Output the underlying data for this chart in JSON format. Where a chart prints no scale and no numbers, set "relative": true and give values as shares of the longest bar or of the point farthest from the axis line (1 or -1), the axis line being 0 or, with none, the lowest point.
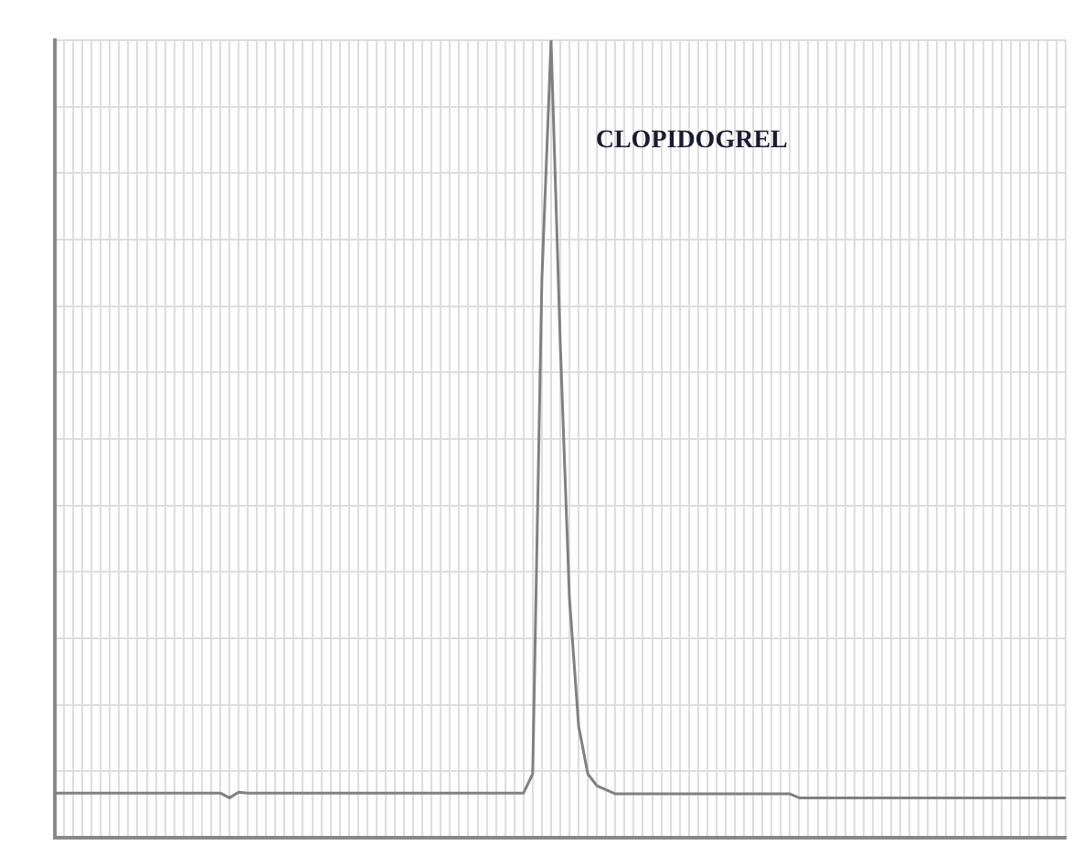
{
  "chart_data": {
    "type": "line",
    "relative": true,
    "categories": [
      null,
      null,
      null,
      null,
      null,
      null,
      null,
      null,
      null,
      null,
      null,
      null,
      null,
      null,
      null,
      null,
      null,
      null,
      null,
      null,
      null,
      null,
      null,
      null,
      null,
      null,
      null,
      null,
      null,
      null,
      null,
      null,
      null,
      null,
      null,
      null,
      null,
      null,
      null,
      null,
      null,
      null,
      null,
      null,
      null,
      null,
      null,
      null,
      null,
      null,
      null,
      null,
      null,
      null,
      null,
      null,
      null,
      null,
      null,
      null,
      null,
      null,
      null,
      null,
      null,
      null,
      null,
      null,
      null,
      null,
      null,
      null,
      null,
      null,
      null,
      null,
      null,
      null,
      null,
      null,
      null,
      null,
      null,
      null,
      null,
      null,
      null,
      null,
      null,
      null,
      null,
      null,
      null,
      null,
      null,
      null,
      null,
      null,
      null,
      null,
      null,
      null,
      null,
      null,
      null,
      null,
      null,
      null,
      null,
      null,
      null
    ],
    "values": [
      0.056,
      0.056,
      0.056,
      0.056,
      0.056,
      0.056,
      0.056,
      0.056,
      0.056,
      0.056,
      0.056,
      0.056,
      0.056,
      0.056,
      0.056,
      0.056,
      0.056,
      0.056,
      0.056,
      0.05,
      0.057,
      0.056,
      0.056,
      0.056,
      0.056,
      0.056,
      0.056,
      0.056,
      0.056,
      0.056,
      0.056,
      0.056,
      0.056,
      0.056,
      0.056,
      0.056,
      0.056,
      0.056,
      0.056,
      0.056,
      0.056,
      0.056,
      0.056,
      0.056,
      0.056,
      0.056,
      0.056,
      0.056,
      0.056,
      0.056,
      0.056,
      0.056,
      0.08,
      0.7,
      1,
      0.62,
      0.3,
      0.14,
      0.08,
      0.065,
      0.06,
      0.055,
      0.055,
      0.055,
      0.055,
      0.055,
      0.055,
      0.055,
      0.055,
      0.055,
      0.055,
      0.055,
      0.055,
      0.055,
      0.055,
      0.055,
      0.055,
      0.055,
      0.055,
      0.055,
      0.055,
      0.05,
      0.05,
      0.05,
      0.05,
      0.05,
      0.05,
      0.05,
      0.05,
      0.05,
      0.05,
      0.05,
      0.05,
      0.05,
      0.05,
      0.05,
      0.05,
      0.05,
      0.05,
      0.05,
      0.05,
      0.05,
      0.05,
      0.05,
      0.05,
      0.05,
      0.05,
      0.05,
      0.05,
      0.05,
      0.05
    ],
    "color": "#808080",
    "grid": true,
    "legend": false,
    "annotations": [
      "CLOPIDOGREL"
    ]
  }
}
